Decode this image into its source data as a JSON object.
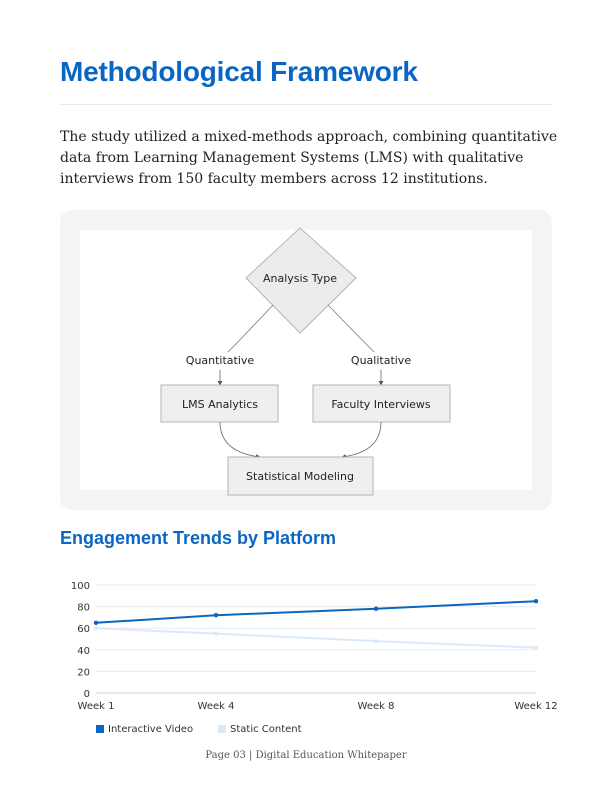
{
  "page": {
    "title": "Methodological Framework",
    "intro": "The study utilized a mixed-methods approach, combining quantitative data from Learning Management Systems (LMS) with qualitative interviews from 150 faculty members across 12 institutions.",
    "section_title": "Engagement Trends by Platform",
    "footer": "Page 03 | Digital Education Whitepaper"
  },
  "diagram": {
    "decision": "Analysis Type",
    "edge_left": "Quantitative",
    "edge_right": "Qualitative",
    "node_left": "LMS Analytics",
    "node_right": "Faculty Interviews",
    "node_bottom": "Statistical Modeling"
  },
  "colors": {
    "accent": "#0a66c2",
    "series_interactive": "#0a66c2",
    "series_static": "#dbe9f8"
  },
  "chart_data": {
    "type": "line",
    "categories": [
      "Week 1",
      "Week 4",
      "Week 8",
      "Week 12"
    ],
    "x_values": [
      1,
      4,
      8,
      12
    ],
    "ylim": [
      0,
      100
    ],
    "yticks": [
      0,
      20,
      40,
      60,
      80,
      100
    ],
    "grid": true,
    "legend": "bottom-left",
    "series": [
      {
        "name": "Interactive Video",
        "values": [
          65,
          72,
          78,
          85
        ]
      },
      {
        "name": "Static Content",
        "values": [
          60,
          55,
          48,
          42
        ]
      }
    ]
  }
}
